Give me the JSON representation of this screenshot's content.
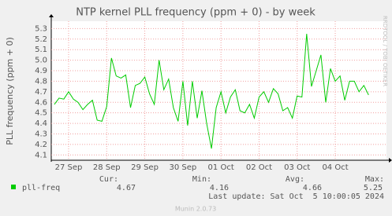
{
  "chart_data": {
    "type": "line",
    "title": "NTP kernel PLL frequency (ppm + 0) - by week",
    "ylabel": "PLL frequency (ppm + 0)",
    "side_text": "RRDTOOL / TOBI OETIKER",
    "xlim": [
      -0.455,
      8.345
    ],
    "xticks": [
      {
        "value": 0,
        "label": "27 Sep"
      },
      {
        "value": 1,
        "label": "28 Sep"
      },
      {
        "value": 2,
        "label": "29 Sep"
      },
      {
        "value": 3,
        "label": "30 Sep"
      },
      {
        "value": 4,
        "label": "01 Oct"
      },
      {
        "value": 5,
        "label": "02 Oct"
      },
      {
        "value": 6,
        "label": "03 Oct"
      },
      {
        "value": 7,
        "label": "04 Oct"
      }
    ],
    "ylim": [
      4.05,
      5.37
    ],
    "yticks": [
      4.1,
      4.2,
      4.3,
      4.4,
      4.5,
      4.6,
      4.7,
      4.8,
      4.9,
      {
        "value": 5.0,
        "label": "5.0"
      },
      5.1,
      5.2,
      5.3
    ],
    "grid": true,
    "x": [
      -0.375,
      -0.25,
      -0.125,
      0,
      0.125,
      0.25,
      0.375,
      0.5,
      0.625,
      0.75,
      0.875,
      1,
      1.125,
      1.25,
      1.375,
      1.5,
      1.625,
      1.75,
      1.875,
      2,
      2.125,
      2.25,
      2.375,
      2.5,
      2.625,
      2.75,
      2.875,
      3,
      3.125,
      3.25,
      3.375,
      3.5,
      3.625,
      3.75,
      3.875,
      4,
      4.125,
      4.25,
      4.375,
      4.5,
      4.625,
      4.75,
      4.875,
      5,
      5.125,
      5.25,
      5.375,
      5.5,
      5.625,
      5.75,
      5.875,
      6,
      6.125,
      6.25,
      6.375,
      6.5,
      6.625,
      6.75,
      6.875,
      7,
      7.125,
      7.25,
      7.375,
      7.5,
      7.625,
      7.75,
      7.875
    ],
    "series": [
      {
        "name": "pll-freq",
        "color": "#00cc00",
        "values": [
          4.58,
          4.64,
          4.63,
          4.7,
          4.63,
          4.6,
          4.53,
          4.58,
          4.62,
          4.43,
          4.42,
          4.56,
          5.02,
          4.85,
          4.83,
          4.86,
          4.55,
          4.76,
          4.78,
          4.84,
          4.68,
          4.58,
          5.0,
          4.72,
          4.82,
          4.55,
          4.42,
          4.8,
          4.38,
          4.8,
          4.45,
          4.71,
          4.4,
          4.16,
          4.55,
          4.7,
          4.5,
          4.65,
          4.72,
          4.52,
          4.5,
          4.58,
          4.45,
          4.65,
          4.7,
          4.6,
          4.73,
          4.68,
          4.52,
          4.55,
          4.45,
          4.66,
          4.65,
          5.25,
          4.75,
          4.9,
          5.05,
          4.6,
          4.92,
          4.8,
          4.85,
          4.62,
          4.8,
          4.8,
          4.7,
          4.76,
          4.67
        ]
      }
    ],
    "stats": {
      "headers": [
        "Cur:",
        "Min:",
        "Avg:",
        "Max:"
      ],
      "values": [
        4.67,
        4.16,
        4.66,
        5.25
      ]
    },
    "last_update": "Last update: Sat Oct  5 10:00:05 2024",
    "footer": "Munin 2.0.73"
  }
}
